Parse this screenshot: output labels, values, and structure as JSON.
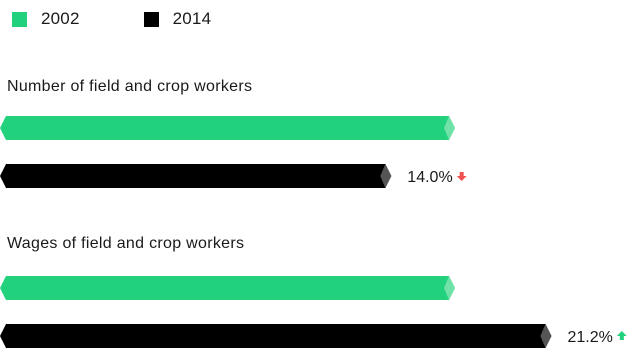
{
  "chart_data": {
    "type": "bar",
    "orientation": "horizontal",
    "legend_position": "top-left",
    "grid": false,
    "series": [
      {
        "name": "2002",
        "color": "#22d17b"
      },
      {
        "name": "2014",
        "color": "#000000"
      }
    ],
    "groups": [
      {
        "title": "Number of field and crop workers",
        "values": {
          "2002": 100,
          "2014": 86.0
        },
        "change": {
          "label": "14.0%",
          "direction": "down",
          "color": "#ef5350"
        }
      },
      {
        "title": "Wages of field and crop workers",
        "values": {
          "2002": 100,
          "2014": 121.2
        },
        "change": {
          "label": "21.2%",
          "direction": "up",
          "color": "#22d17b"
        }
      }
    ]
  }
}
